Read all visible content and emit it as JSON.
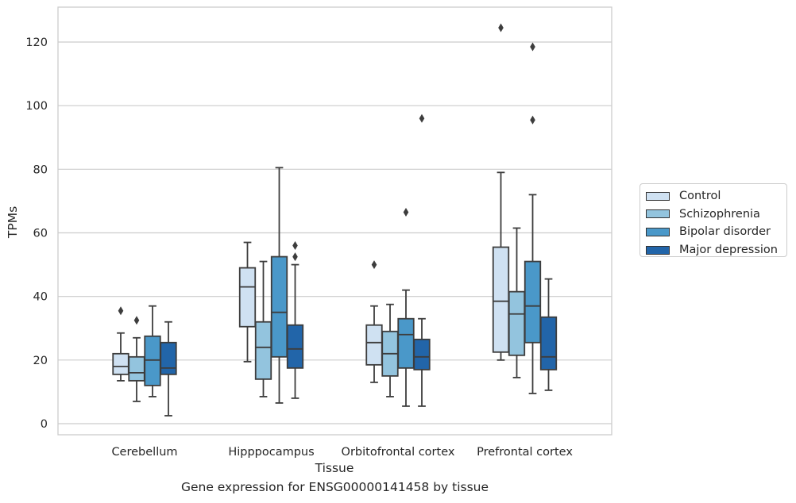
{
  "caption": "Gene expression for ENSG00000141458 by tissue",
  "chart_data": {
    "type": "box",
    "xlabel": "Tissue",
    "ylabel": "TPMs",
    "categories": [
      "Cerebellum",
      "Hipppocampus",
      "Orbitofrontal cortex",
      "Prefrontal cortex"
    ],
    "ylim": [
      -3.5,
      131
    ],
    "yticks": [
      0,
      20,
      40,
      60,
      80,
      100,
      120
    ],
    "grid": true,
    "legend_position": "right",
    "series": [
      {
        "name": "Control",
        "color": "#cfe1f2",
        "boxes": [
          {
            "whisker_low": 13.5,
            "q1": 15.5,
            "median": 18,
            "q3": 22,
            "whisker_high": 28.5,
            "outliers": [
              35.5
            ]
          },
          {
            "whisker_low": 19.5,
            "q1": 30.5,
            "median": 43,
            "q3": 49,
            "whisker_high": 57,
            "outliers": []
          },
          {
            "whisker_low": 13,
            "q1": 18.5,
            "median": 25.5,
            "q3": 31,
            "whisker_high": 37,
            "outliers": [
              50
            ]
          },
          {
            "whisker_low": 20,
            "q1": 22.5,
            "median": 38.5,
            "q3": 55.5,
            "whisker_high": 79,
            "outliers": [
              124.5
            ]
          }
        ]
      },
      {
        "name": "Schizophrenia",
        "color": "#93c4de",
        "boxes": [
          {
            "whisker_low": 7,
            "q1": 13.5,
            "median": 16,
            "q3": 21,
            "whisker_high": 27,
            "outliers": [
              32.5
            ]
          },
          {
            "whisker_low": 8.5,
            "q1": 14,
            "median": 24,
            "q3": 32,
            "whisker_high": 51,
            "outliers": []
          },
          {
            "whisker_low": 8.5,
            "q1": 15,
            "median": 22,
            "q3": 29,
            "whisker_high": 37.5,
            "outliers": []
          },
          {
            "whisker_low": 14.5,
            "q1": 21.5,
            "median": 34.5,
            "q3": 41.5,
            "whisker_high": 61.5,
            "outliers": []
          }
        ]
      },
      {
        "name": "Bipolar disorder",
        "color": "#4a98c9",
        "boxes": [
          {
            "whisker_low": 8.5,
            "q1": 12,
            "median": 20,
            "q3": 27.5,
            "whisker_high": 37,
            "outliers": []
          },
          {
            "whisker_low": 6.5,
            "q1": 21,
            "median": 35,
            "q3": 52.5,
            "whisker_high": 80.5,
            "outliers": []
          },
          {
            "whisker_low": 5.5,
            "q1": 17.5,
            "median": 28,
            "q3": 33,
            "whisker_high": 42,
            "outliers": [
              66.5
            ]
          },
          {
            "whisker_low": 9.5,
            "q1": 25.5,
            "median": 37,
            "q3": 51,
            "whisker_high": 72,
            "outliers": [
              95.5,
              118.5
            ]
          }
        ]
      },
      {
        "name": "Major depression",
        "color": "#2265a9",
        "boxes": [
          {
            "whisker_low": 2.5,
            "q1": 15.5,
            "median": 17.5,
            "q3": 25.5,
            "whisker_high": 32,
            "outliers": []
          },
          {
            "whisker_low": 8,
            "q1": 17.5,
            "median": 23.5,
            "q3": 31,
            "whisker_high": 50,
            "outliers": [
              52.5,
              56
            ]
          },
          {
            "whisker_low": 5.5,
            "q1": 17,
            "median": 21,
            "q3": 26.5,
            "whisker_high": 33,
            "outliers": [
              96
            ]
          },
          {
            "whisker_low": 10.5,
            "q1": 17,
            "median": 21,
            "q3": 33.5,
            "whisker_high": 45.5,
            "outliers": []
          }
        ]
      }
    ]
  }
}
